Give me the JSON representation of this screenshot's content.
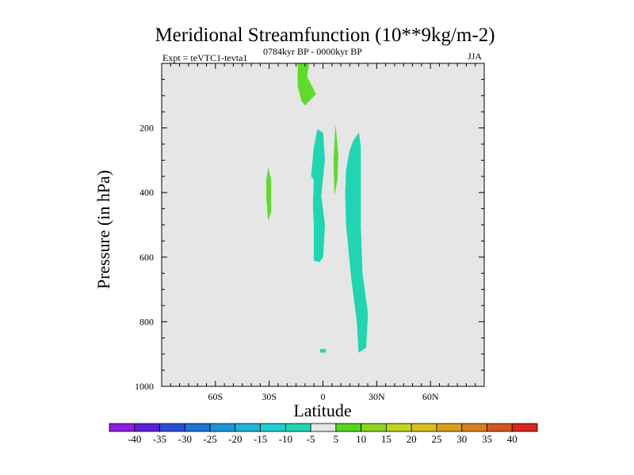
{
  "chart_data": {
    "type": "contour",
    "title": "Meridional Streamfunction (10**9kg/m-2)",
    "experiment_label": "Expt = teVTC1-tevta1",
    "period_label": "0784kyr BP - 0000kyr BP",
    "season_label": "JJA",
    "xlabel": "Latitude",
    "ylabel": "Pressure (in hPa)",
    "xlim": [
      -90,
      90
    ],
    "ylim": [
      1000,
      0
    ],
    "x_ticks": [
      {
        "value": -60,
        "label": "60S"
      },
      {
        "value": -30,
        "label": "30S"
      },
      {
        "value": 0,
        "label": "0"
      },
      {
        "value": 30,
        "label": "30N"
      },
      {
        "value": 60,
        "label": "60N"
      }
    ],
    "y_ticks": [
      {
        "value": 200,
        "label": "200"
      },
      {
        "value": 400,
        "label": "400"
      },
      {
        "value": 600,
        "label": "600"
      },
      {
        "value": 800,
        "label": "800"
      },
      {
        "value": 1000,
        "label": "1000"
      }
    ],
    "background_color": "#e6e6e6",
    "colorbar": {
      "labels": [
        "-40",
        "-35",
        "-30",
        "-25",
        "-20",
        "-15",
        "-10",
        "-5",
        "5",
        "10",
        "15",
        "20",
        "25",
        "30",
        "35",
        "40"
      ],
      "colors": [
        "#8b1fe0",
        "#5a1fd6",
        "#2a4fd6",
        "#1f73d6",
        "#1f95d6",
        "#1fb5d6",
        "#1fcfd0",
        "#1fd6b0",
        "#e6e6e6",
        "#55d61f",
        "#8fd61f",
        "#c0d61f",
        "#d6c01f",
        "#d6a01f",
        "#d6801f",
        "#d6551f",
        "#d6261f"
      ]
    },
    "regions": [
      {
        "name": "positive-5-10-upper-30s",
        "value_range": "5 to 10",
        "color": "#5fdc2a",
        "points": [
          [
            -12,
            0
          ],
          [
            -8,
            0
          ],
          [
            -8,
            10
          ],
          [
            -9,
            40
          ],
          [
            -4,
            95
          ],
          [
            -10,
            130
          ],
          [
            -12,
            115
          ],
          [
            -14,
            70
          ],
          [
            -14,
            0
          ]
        ]
      },
      {
        "name": "positive-5-10-30s",
        "value_range": "5 to 10",
        "color": "#5fdc2a",
        "points": [
          [
            -30.5,
            325
          ],
          [
            -29,
            360
          ],
          [
            -29,
            460
          ],
          [
            -30.5,
            485
          ],
          [
            -31.5,
            420
          ],
          [
            -31.5,
            360
          ]
        ]
      },
      {
        "name": "positive-5-10-8n",
        "value_range": "5 to 10",
        "color": "#5fdc2a",
        "points": [
          [
            7,
            195
          ],
          [
            8.5,
            280
          ],
          [
            8,
            360
          ],
          [
            6.5,
            405
          ],
          [
            6,
            300
          ]
        ]
      },
      {
        "name": "negative-10-5-equator",
        "value_range": "-10 to -5",
        "color": "#1fd6b0",
        "points": [
          [
            -3,
            205
          ],
          [
            0,
            215
          ],
          [
            1,
            300
          ],
          [
            0,
            350
          ],
          [
            -1,
            410
          ],
          [
            1,
            500
          ],
          [
            0,
            600
          ],
          [
            -2,
            615
          ],
          [
            -5,
            610
          ],
          [
            -5,
            500
          ],
          [
            -5.5,
            440
          ],
          [
            -5,
            360
          ],
          [
            -6.5,
            350
          ],
          [
            -5,
            260
          ]
        ]
      },
      {
        "name": "negative-10-5-20n",
        "value_range": "-10 to -5",
        "color": "#1fd6b0",
        "points": [
          [
            20,
            215
          ],
          [
            21,
            260
          ],
          [
            21,
            350
          ],
          [
            21,
            500
          ],
          [
            22,
            650
          ],
          [
            25,
            775
          ],
          [
            24,
            880
          ],
          [
            20,
            895
          ],
          [
            19,
            800
          ],
          [
            16,
            670
          ],
          [
            13,
            500
          ],
          [
            12.5,
            400
          ],
          [
            13,
            330
          ],
          [
            15,
            270
          ],
          [
            17,
            240
          ]
        ]
      },
      {
        "name": "negative-10-5-surface-speck",
        "value_range": "-10 to -5",
        "color": "#1fd6b0",
        "points": [
          [
            -1.5,
            885
          ],
          [
            1.5,
            885
          ],
          [
            1.5,
            895
          ],
          [
            -1.5,
            895
          ]
        ]
      }
    ]
  }
}
